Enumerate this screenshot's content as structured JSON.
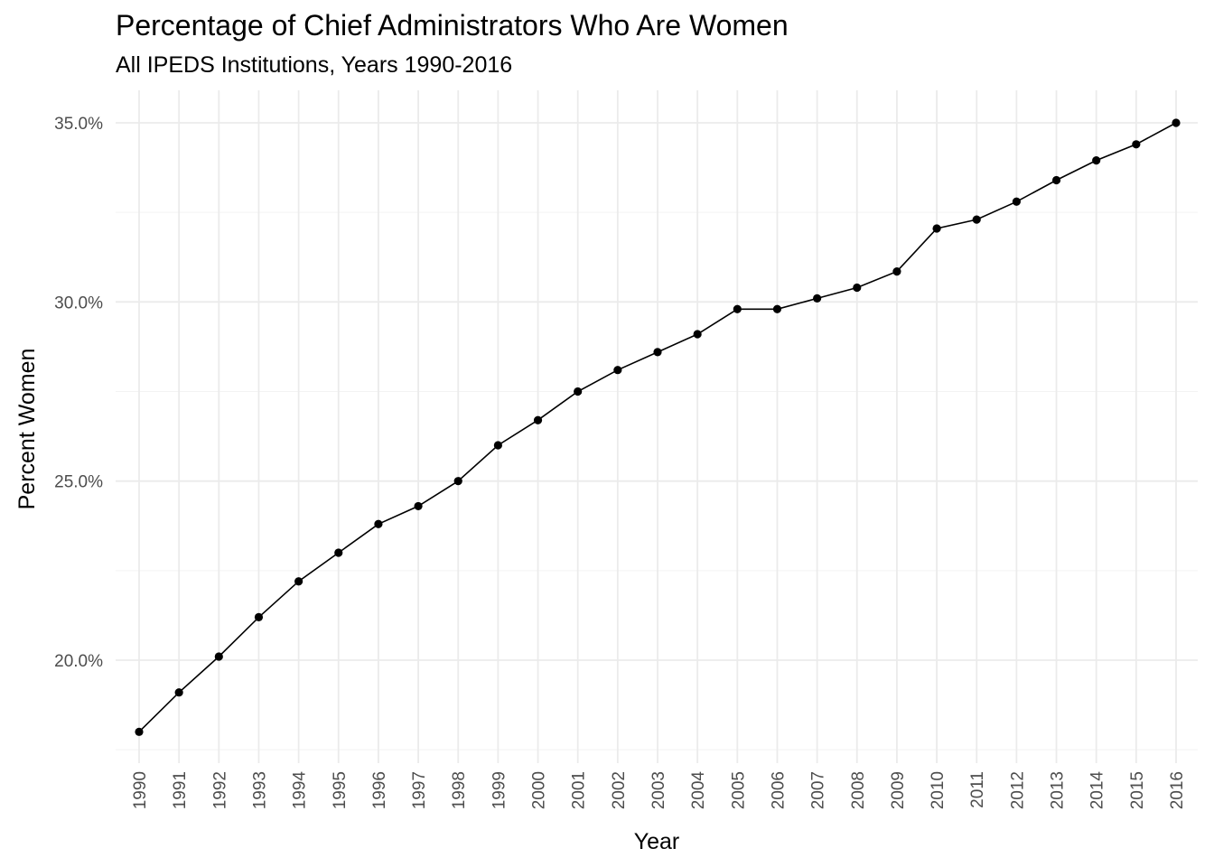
{
  "chart_data": {
    "type": "line",
    "title": "Percentage of Chief Administrators Who Are Women",
    "subtitle": "All IPEDS Institutions, Years 1990-2016",
    "xlabel": "Year",
    "ylabel": "Percent Women",
    "categories": [
      "1990",
      "1991",
      "1992",
      "1993",
      "1994",
      "1995",
      "1996",
      "1997",
      "1998",
      "1999",
      "2000",
      "2001",
      "2002",
      "2003",
      "2004",
      "2005",
      "2006",
      "2007",
      "2008",
      "2009",
      "2010",
      "2011",
      "2012",
      "2013",
      "2014",
      "2015",
      "2016"
    ],
    "values": [
      18.0,
      19.1,
      20.1,
      21.2,
      22.2,
      23.0,
      23.8,
      24.3,
      25.0,
      26.0,
      26.7,
      27.5,
      28.1,
      28.6,
      29.1,
      29.8,
      29.8,
      30.1,
      30.4,
      30.85,
      32.05,
      32.3,
      32.8,
      33.4,
      33.95,
      34.4,
      35.0
    ],
    "yticks": [
      20,
      25,
      30,
      35
    ],
    "ytick_labels": [
      "20.0%",
      "25.0%",
      "30.0%",
      "35.0%"
    ],
    "ylim": [
      17.3,
      35.7
    ],
    "grid": true,
    "legend": "none",
    "line_color": "#000000",
    "grid_color": "#ebebeb"
  }
}
